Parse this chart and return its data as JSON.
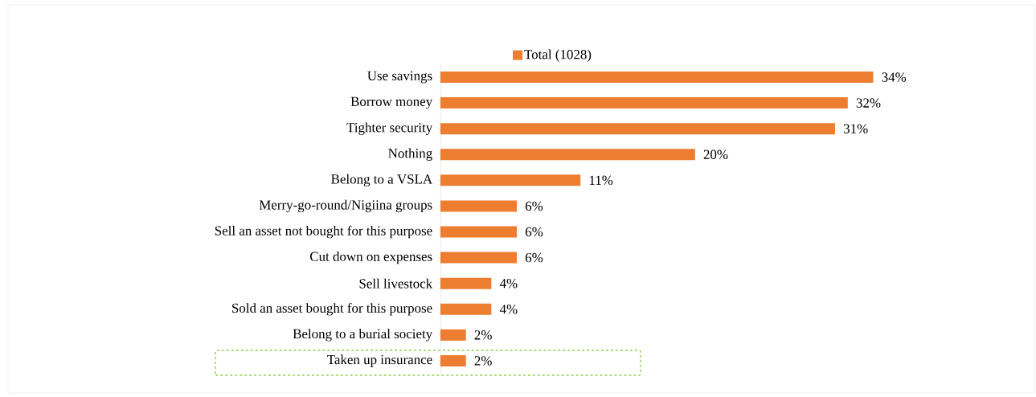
{
  "chart_data": {
    "type": "bar",
    "orientation": "horizontal",
    "legend": "top",
    "categories": [
      "Use savings",
      "Borrow money",
      "Tighter security",
      "Nothing",
      "Belong to a VSLA",
      "Merry-go-round/Nigiina groups",
      "Sell an asset not bought for this purpose",
      "Cut down on expenses",
      "Sell livestock",
      "Sold an asset bought for this purpose",
      "Belong to a burial society",
      "Taken up insurance"
    ],
    "series": [
      {
        "name": "Total (1028)",
        "color": "#ed7d31",
        "values": [
          34,
          32,
          31,
          20,
          11,
          6,
          6,
          6,
          4,
          4,
          2,
          2
        ],
        "value_labels": [
          "34%",
          "32%",
          "31%",
          "20%",
          "11%",
          "6%",
          "6%",
          "6%",
          "4%",
          "4%",
          "2%",
          "2%"
        ]
      }
    ]
  }
}
